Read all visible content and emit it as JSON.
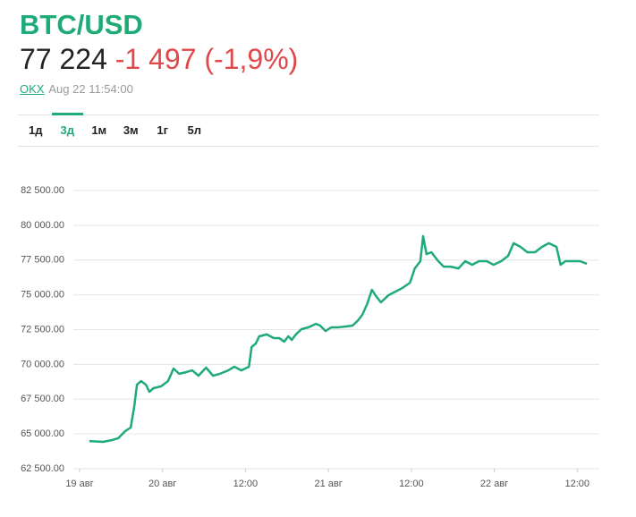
{
  "header": {
    "title": "BTC/USD",
    "price": "77 224",
    "change": "-1 497 (-1,9%)",
    "source": "OKX",
    "timestamp": "Aug 22 11:54:00"
  },
  "tabs": {
    "items": [
      "1д",
      "3д",
      "1м",
      "3м",
      "1г",
      "5л"
    ],
    "active": 1
  },
  "chart_data": {
    "type": "line",
    "color": "#1fab78",
    "grid": true,
    "x": [
      1.4,
      3.4,
      4.7,
      5.6,
      6.6,
      7.4,
      7.9,
      8.3,
      8.9,
      9.6,
      10.1,
      10.7,
      11.8,
      12.8,
      13.6,
      14.4,
      15.4,
      16.3,
      17.2,
      18.3,
      19.3,
      20.3,
      21.5,
      22.4,
      23.4,
      24.5,
      24.9,
      25.5,
      26.0,
      27.1,
      28.1,
      28.9,
      29.6,
      30.2,
      30.7,
      31.3,
      32.1,
      33.1,
      34.2,
      34.8,
      35.6,
      36.4,
      37.4,
      38.4,
      39.5,
      40.3,
      40.9,
      41.6,
      42.3,
      42.8,
      43.6,
      44.7,
      45.7,
      46.7,
      47.8,
      48.5,
      49.3,
      49.7,
      50.2,
      50.9,
      51.9,
      52.7,
      53.7,
      54.8,
      55.8,
      56.8,
      57.8,
      58.9,
      59.9,
      61.0,
      62.0,
      62.8,
      63.8,
      64.8,
      65.9,
      66.9,
      67.9,
      69.0,
      69.6,
      70.3,
      71.3,
      72.4,
      73.4
    ],
    "values": [
      64490,
      64430,
      64560,
      64690,
      65200,
      65460,
      66940,
      68540,
      68800,
      68540,
      68030,
      68290,
      68420,
      68800,
      69700,
      69320,
      69440,
      69570,
      69190,
      69770,
      69190,
      69320,
      69570,
      69830,
      69570,
      69830,
      71250,
      71500,
      72020,
      72150,
      71890,
      71890,
      71630,
      72020,
      71760,
      72150,
      72530,
      72660,
      72920,
      72790,
      72400,
      72660,
      72660,
      72720,
      72790,
      73170,
      73560,
      74330,
      75360,
      74970,
      74460,
      74970,
      75230,
      75490,
      75870,
      76900,
      77420,
      79220,
      77930,
      78060,
      77420,
      77030,
      77030,
      76900,
      77420,
      77160,
      77420,
      77420,
      77160,
      77420,
      77800,
      78710,
      78450,
      78060,
      78060,
      78450,
      78710,
      78450,
      77160,
      77420,
      77420,
      77420,
      77230
    ],
    "xlim": [
      -0.9,
      75.2
    ],
    "xticks": [
      {
        "value": 0,
        "label": "19 авг"
      },
      {
        "value": 12,
        "label": "20 авг"
      },
      {
        "value": 24,
        "label": "12:00"
      },
      {
        "value": 36,
        "label": "21 авг"
      },
      {
        "value": 48,
        "label": "12:00"
      },
      {
        "value": 60,
        "label": "22 авг"
      },
      {
        "value": 72,
        "label": "12:00"
      }
    ],
    "ylim": [
      62500,
      82500
    ],
    "yticks": [
      {
        "value": 62500,
        "label": "62 500.00"
      },
      {
        "value": 65000,
        "label": "65 000.00"
      },
      {
        "value": 67500,
        "label": "67 500.00"
      },
      {
        "value": 70000,
        "label": "70 000.00"
      },
      {
        "value": 72500,
        "label": "72 500.00"
      },
      {
        "value": 75000,
        "label": "75 000.00"
      },
      {
        "value": 77500,
        "label": "77 500.00"
      },
      {
        "value": 80000,
        "label": "80 000.00"
      },
      {
        "value": 82500,
        "label": "82 500.00"
      }
    ]
  }
}
